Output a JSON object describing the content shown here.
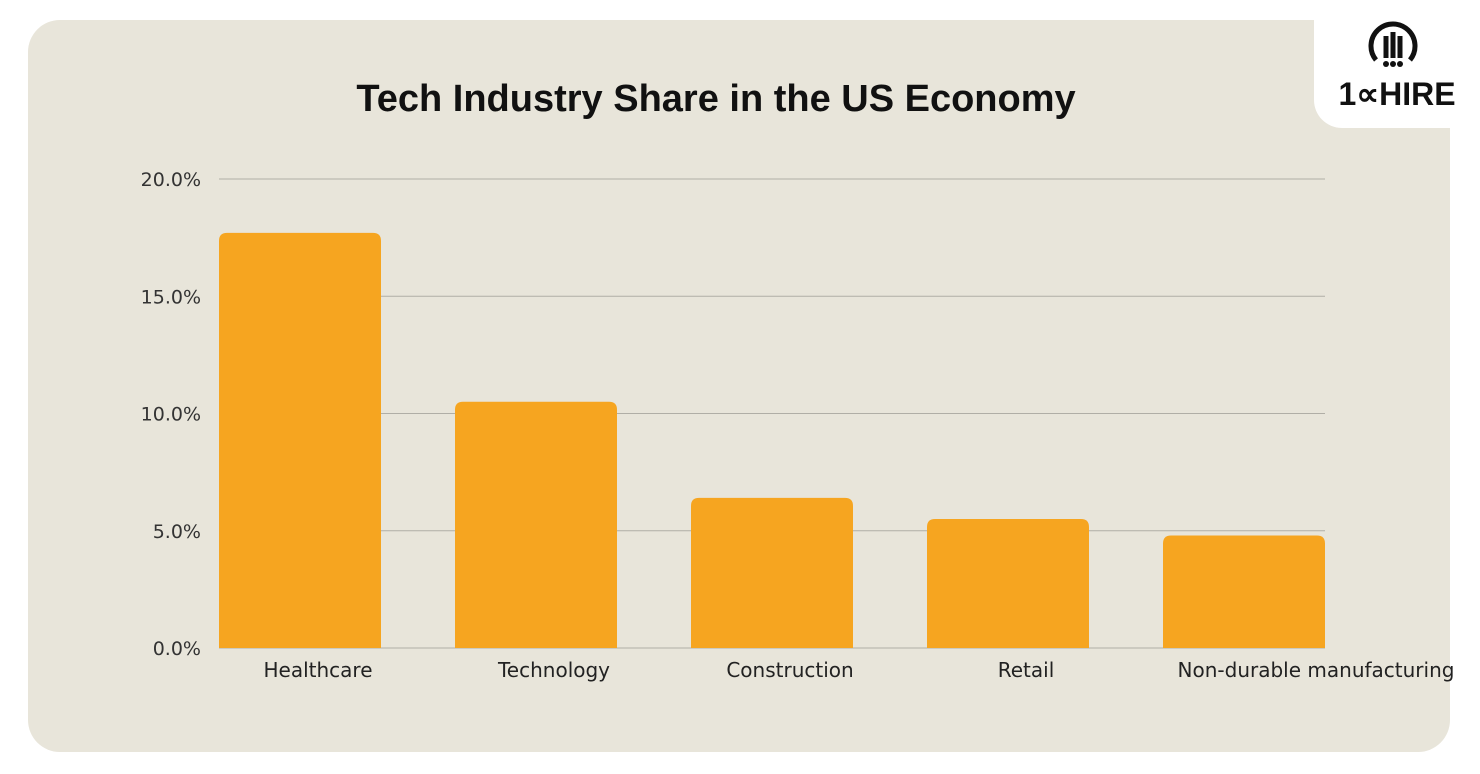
{
  "brand": {
    "logo_text": "10xHIRE"
  },
  "colors": {
    "background": "#e8e5da",
    "bar": "#f6a520",
    "grid": "#b0aea6"
  },
  "chart_data": {
    "type": "bar",
    "title": "Tech Industry Share in the US Economy",
    "categories": [
      "Healthcare",
      "Technology",
      "Construction",
      "Retail",
      "Non-durable manufacturing"
    ],
    "values": [
      17.7,
      10.5,
      6.4,
      5.5,
      4.8
    ],
    "ylim": [
      0,
      20
    ],
    "yticks": [
      0,
      5,
      10,
      15,
      20
    ],
    "ytick_labels": [
      "0.0%",
      "5.0%",
      "10.0%",
      "15.0%",
      "20.0%"
    ],
    "xlabel": "",
    "ylabel": "",
    "grid": true,
    "legend": "none"
  }
}
